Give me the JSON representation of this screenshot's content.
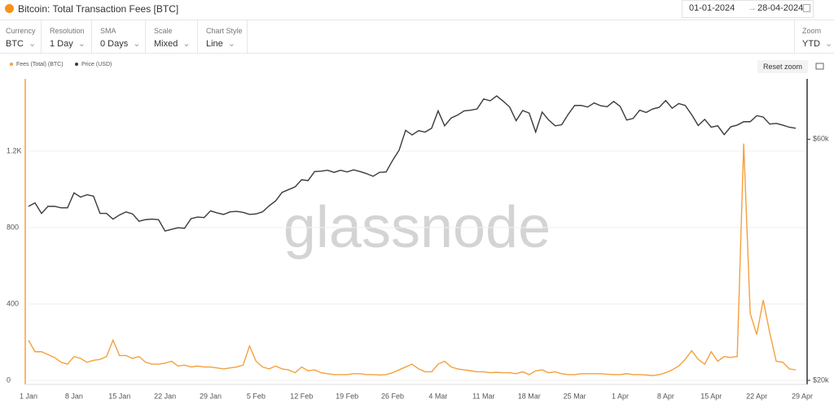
{
  "header": {
    "title": "Bitcoin: Total Transaction Fees [BTC]",
    "date_from": "01-01-2024",
    "date_to": "28-04-2024"
  },
  "controls": [
    {
      "label": "Currency",
      "value": "BTC"
    },
    {
      "label": "Resolution",
      "value": "1 Day"
    },
    {
      "label": "SMA",
      "value": "0 Days"
    },
    {
      "label": "Scale",
      "value": "Mixed"
    },
    {
      "label": "Chart Style",
      "value": "Line"
    },
    {
      "label": "Zoom",
      "value": "YTD"
    }
  ],
  "reset_zoom": "Reset zoom",
  "watermark": "glassnode",
  "chart_data": {
    "type": "line",
    "categories": [
      "1 Jan",
      null,
      null,
      null,
      null,
      null,
      null,
      "8 Jan",
      null,
      null,
      null,
      null,
      null,
      null,
      "15 Jan",
      null,
      null,
      null,
      null,
      null,
      null,
      "22 Jan",
      null,
      null,
      null,
      null,
      null,
      null,
      "29 Jan",
      null,
      null,
      null,
      null,
      null,
      null,
      "5 Feb",
      null,
      null,
      null,
      null,
      null,
      null,
      "12 Feb",
      null,
      null,
      null,
      null,
      null,
      null,
      "19 Feb",
      null,
      null,
      null,
      null,
      null,
      null,
      "26 Feb",
      null,
      null,
      null,
      null,
      null,
      null,
      "4 Mar",
      null,
      null,
      null,
      null,
      null,
      null,
      "11 Mar",
      null,
      null,
      null,
      null,
      null,
      null,
      "18 Mar",
      null,
      null,
      null,
      null,
      null,
      null,
      "25 Mar",
      null,
      null,
      null,
      null,
      null,
      null,
      "1 Apr",
      null,
      null,
      null,
      null,
      null,
      null,
      "8 Apr",
      null,
      null,
      null,
      null,
      null,
      null,
      "15 Apr",
      null,
      null,
      null,
      null,
      null,
      null,
      "22 Apr",
      null,
      null,
      null,
      null,
      null,
      null,
      "29 Apr"
    ],
    "series": [
      {
        "name": "Fees (Total) (BTC)",
        "color": "#f5a03c",
        "axis": "y",
        "values": [
          210,
          150,
          150,
          135,
          120,
          95,
          85,
          125,
          115,
          95,
          105,
          110,
          125,
          210,
          130,
          130,
          115,
          125,
          95,
          85,
          85,
          90,
          100,
          75,
          80,
          70,
          75,
          70,
          70,
          65,
          60,
          65,
          70,
          80,
          180,
          100,
          70,
          60,
          75,
          60,
          55,
          40,
          70,
          50,
          55,
          40,
          35,
          30,
          30,
          30,
          35,
          35,
          30,
          30,
          28,
          30,
          40,
          55,
          70,
          85,
          60,
          45,
          45,
          85,
          100,
          70,
          60,
          55,
          50,
          45,
          45,
          40,
          42,
          40,
          40,
          35,
          45,
          30,
          50,
          55,
          40,
          45,
          35,
          30,
          30,
          35,
          35,
          35,
          35,
          32,
          30,
          30,
          35,
          30,
          30,
          28,
          25,
          30,
          40,
          55,
          75,
          110,
          155,
          110,
          85,
          150,
          100,
          125,
          120,
          125,
          1240,
          350,
          240,
          420,
          250,
          100,
          95,
          60,
          55,
          null
        ]
      },
      {
        "name": "Price (USD)",
        "color": "#3a3a3a",
        "axis": "y2",
        "values": [
          44200,
          44900,
          42800,
          44200,
          44200,
          43900,
          43900,
          47000,
          46100,
          46600,
          46300,
          42800,
          42800,
          41700,
          42500,
          43100,
          42700,
          41300,
          41600,
          41700,
          41600,
          39500,
          39800,
          40100,
          40000,
          41800,
          42100,
          42000,
          43300,
          42900,
          42600,
          43100,
          43200,
          43000,
          42600,
          42700,
          43100,
          44300,
          45300,
          47100,
          47700,
          48300,
          49900,
          49700,
          51800,
          51900,
          52100,
          51600,
          52100,
          51700,
          52200,
          51800,
          51300,
          50700,
          51600,
          51700,
          54500,
          57100,
          62500,
          61200,
          62400,
          62000,
          63100,
          68300,
          63800,
          66100,
          67000,
          68300,
          68500,
          68900,
          72100,
          71500,
          73100,
          71400,
          69500,
          65300,
          68400,
          67600,
          62000,
          67900,
          65500,
          63800,
          64100,
          67200,
          70000,
          70000,
          69500,
          70800,
          69900,
          69600,
          71300,
          69700,
          65500,
          66000,
          68500,
          67800,
          68900,
          69400,
          71600,
          69100,
          70600,
          70000,
          67100,
          63900,
          65700,
          63400,
          63800,
          61300,
          63500,
          64000,
          65000,
          65000,
          66800,
          66400,
          64300,
          64500,
          64000,
          63400,
          63100,
          null
        ]
      }
    ],
    "ylim": [
      0,
      1600
    ],
    "yticks": [
      0,
      400,
      800,
      {
        "value": 1200,
        "label": "1.2K"
      }
    ],
    "y2lim": [
      20000,
      80500
    ],
    "y2ticks": [
      {
        "value": 20000,
        "label": "$20k"
      },
      {
        "value": 60000,
        "label": "$60k"
      }
    ],
    "y2_log_scale": true,
    "grid": true
  }
}
